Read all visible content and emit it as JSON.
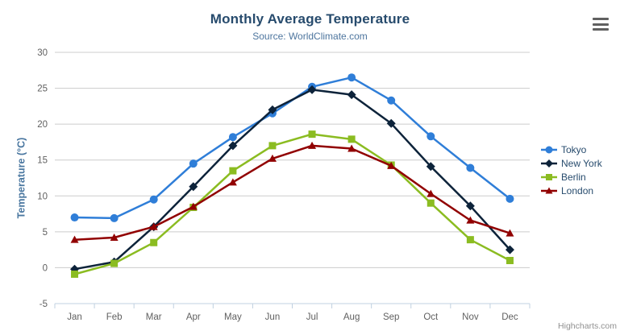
{
  "chart_data": {
    "type": "line",
    "title": "Monthly Average Temperature",
    "subtitle": "Source: WorldClimate.com",
    "categories": [
      "Jan",
      "Feb",
      "Mar",
      "Apr",
      "May",
      "Jun",
      "Jul",
      "Aug",
      "Sep",
      "Oct",
      "Nov",
      "Dec"
    ],
    "series": [
      {
        "name": "Tokyo",
        "marker": "circle",
        "color": "#2f7ed8",
        "values": [
          7.0,
          6.9,
          9.5,
          14.5,
          18.2,
          21.5,
          25.2,
          26.5,
          23.3,
          18.3,
          13.9,
          9.6
        ]
      },
      {
        "name": "New York",
        "marker": "diamond",
        "color": "#0d233a",
        "values": [
          -0.2,
          0.8,
          5.7,
          11.3,
          17.0,
          22.0,
          24.8,
          24.1,
          20.1,
          14.1,
          8.6,
          2.5
        ]
      },
      {
        "name": "Berlin",
        "marker": "square",
        "color": "#8bbc21",
        "values": [
          -0.9,
          0.6,
          3.5,
          8.4,
          13.5,
          17.0,
          18.6,
          17.9,
          14.3,
          9.0,
          3.9,
          1.0
        ]
      },
      {
        "name": "London",
        "marker": "triangle",
        "color": "#910000",
        "values": [
          3.9,
          4.2,
          5.7,
          8.5,
          11.9,
          15.2,
          17.0,
          16.6,
          14.2,
          10.3,
          6.6,
          4.8
        ]
      }
    ],
    "xlabel": "",
    "ylabel": "Temperature (°C)",
    "ylim": [
      -5,
      30
    ],
    "y_tick_interval": 5,
    "y_tick_labels": [
      "-5",
      "0",
      "5",
      "10",
      "15",
      "20",
      "25",
      "30"
    ],
    "grid": true,
    "legend_position": "right"
  },
  "credits": "Highcharts.com",
  "colors": {
    "title": "#274b6d",
    "subtitle": "#4d759e",
    "axis_labels": "#606060",
    "y_axis_title": "#4a77a0",
    "grid_line": "#cccccc",
    "axis_line": "#c0d0e0",
    "legend_text": "#274b6d",
    "credits": "#909090"
  }
}
